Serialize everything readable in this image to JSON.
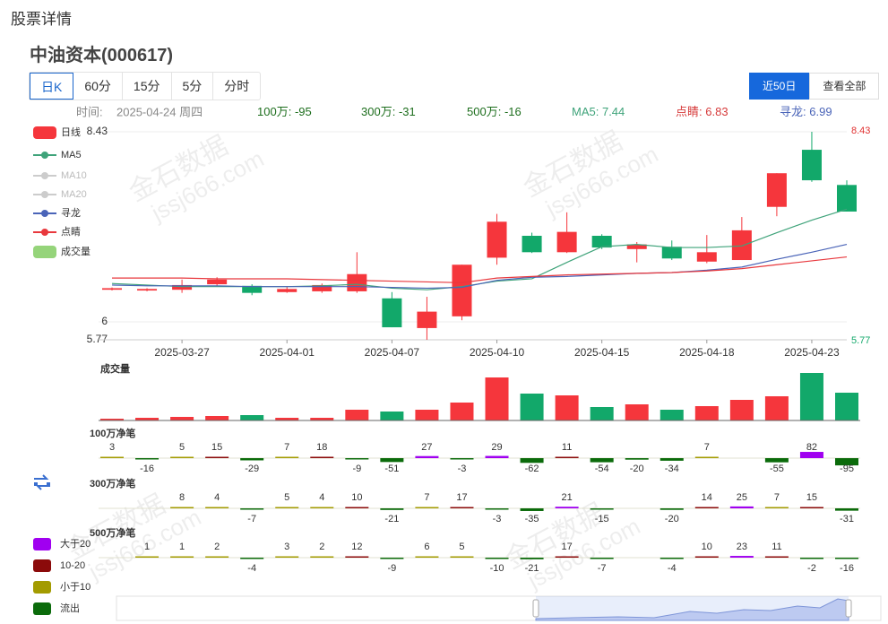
{
  "page_title": "股票详情",
  "stock": "中油资本(000617)",
  "tabs": [
    "日K",
    "60分",
    "15分",
    "5分",
    "分时"
  ],
  "range_buttons": [
    "近50日",
    "查看全部"
  ],
  "info": {
    "time_label": "时间:",
    "time": "2025-04-24 周四",
    "items": [
      {
        "label": "100万:",
        "value": -95,
        "color": "#1d6e1d"
      },
      {
        "label": "300万:",
        "value": -31,
        "color": "#1d6e1d"
      },
      {
        "label": "500万:",
        "value": -16,
        "color": "#1d6e1d"
      },
      {
        "label": "MA5:",
        "value": 7.44,
        "color": "#3fa37a"
      },
      {
        "label": "点睛:",
        "value": 6.83,
        "color": "#d63a3a"
      },
      {
        "label": "寻龙:",
        "value": 6.99,
        "color": "#4a64b8"
      }
    ]
  },
  "watermark": [
    "金石数据",
    "jssj666.com"
  ],
  "chart_data": {
    "type": "candlestick",
    "categories": [
      null,
      null,
      "2025-03-27",
      null,
      null,
      "2025-04-01",
      null,
      null,
      "2025-04-07",
      null,
      null,
      "2025-04-10",
      null,
      null,
      "2025-04-15",
      null,
      null,
      "2025-04-18",
      null,
      null,
      "2025-04-23",
      null
    ],
    "ylim": [
      5.77,
      8.43
    ],
    "yticks": [
      5.77,
      6,
      8.43
    ],
    "grid": true,
    "series": [
      {
        "name": "日线",
        "color": "#f5363c",
        "down_color": "#12a86a",
        "open": [
          6.41,
          6.4,
          6.41,
          6.48,
          6.46,
          6.38,
          6.39,
          6.39,
          6.3,
          5.92,
          6.07,
          6.82,
          7.1,
          6.89,
          7.1,
          6.93,
          6.96,
          6.77,
          6.79,
          7.47,
          8.2,
          7.75
        ],
        "close": [
          6.43,
          6.42,
          6.47,
          6.54,
          6.37,
          6.42,
          6.47,
          6.61,
          5.93,
          6.13,
          6.73,
          7.28,
          6.89,
          7.15,
          6.95,
          6.99,
          6.81,
          6.89,
          7.17,
          7.9,
          7.81,
          7.41
        ],
        "high": [
          6.44,
          6.43,
          6.54,
          6.57,
          6.48,
          6.45,
          6.49,
          6.89,
          6.38,
          6.32,
          6.73,
          7.38,
          7.14,
          7.4,
          7.12,
          7.02,
          7.04,
          7.11,
          7.34,
          7.9,
          8.43,
          7.81
        ],
        "low": [
          6.4,
          6.39,
          6.37,
          6.46,
          6.34,
          6.37,
          6.37,
          6.37,
          5.93,
          5.77,
          6.02,
          6.73,
          6.88,
          6.88,
          6.93,
          6.76,
          6.79,
          6.75,
          6.79,
          7.35,
          7.79,
          7.41
        ]
      },
      {
        "name": "MA5",
        "color": "#3fa37a",
        "values": [
          6.49,
          6.47,
          6.45,
          6.45,
          6.45,
          6.45,
          6.46,
          6.48,
          6.43,
          6.41,
          6.45,
          6.52,
          6.55,
          6.76,
          6.96,
          6.99,
          6.95,
          6.95,
          6.97,
          7.14,
          7.3,
          7.44
        ]
      },
      {
        "name": "MA10",
        "color": "#cccccc"
      },
      {
        "name": "MA20",
        "color": "#cccccc"
      },
      {
        "name": "寻龙",
        "color": "#4a64b8",
        "values": [
          6.47,
          6.46,
          6.46,
          6.46,
          6.45,
          6.45,
          6.45,
          6.45,
          6.44,
          6.43,
          6.44,
          6.53,
          6.57,
          6.58,
          6.6,
          6.62,
          6.63,
          6.66,
          6.7,
          6.8,
          6.89,
          6.99
        ]
      },
      {
        "name": "点睛",
        "color": "#e8383d",
        "values": [
          6.56,
          6.56,
          6.56,
          6.55,
          6.55,
          6.55,
          6.54,
          6.53,
          6.52,
          6.51,
          6.5,
          6.56,
          6.58,
          6.6,
          6.61,
          6.62,
          6.63,
          6.65,
          6.68,
          6.73,
          6.78,
          6.83
        ]
      }
    ],
    "volume": {
      "name": "成交量",
      "color": "#95d47a",
      "ylim": [
        0,
        55
      ],
      "values": [
        2,
        3,
        4,
        5,
        6,
        3,
        3,
        12,
        10,
        12,
        20,
        48,
        30,
        28,
        15,
        18,
        12,
        16,
        23,
        27,
        53,
        31
      ]
    },
    "flows": {
      "legend": [
        {
          "name": "大于20",
          "color": "#a000f0"
        },
        {
          "name": "10-20",
          "color": "#8b0a0a"
        },
        {
          "name": "小于10",
          "color": "#a39b00"
        },
        {
          "name": "流出",
          "color": "#0b6b0b"
        }
      ],
      "panels": [
        {
          "title": "100万净笔",
          "values": [
            3,
            -16,
            5,
            15,
            -29,
            7,
            18,
            -9,
            -51,
            27,
            -3,
            29,
            -62,
            11,
            -54,
            -20,
            -34,
            7,
            null,
            -55,
            82,
            -95
          ]
        },
        {
          "title": "300万净笔",
          "values": [
            null,
            null,
            8,
            4,
            -7,
            5,
            4,
            10,
            -21,
            7,
            17,
            -3,
            -35,
            21,
            -15,
            null,
            -20,
            14,
            25,
            7,
            15,
            -31
          ]
        },
        {
          "title": "500万净笔",
          "values": [
            null,
            1,
            1,
            2,
            -4,
            3,
            2,
            12,
            -9,
            6,
            5,
            -10,
            -21,
            17,
            -7,
            null,
            -4,
            10,
            23,
            11,
            -2,
            -16
          ]
        }
      ]
    }
  }
}
